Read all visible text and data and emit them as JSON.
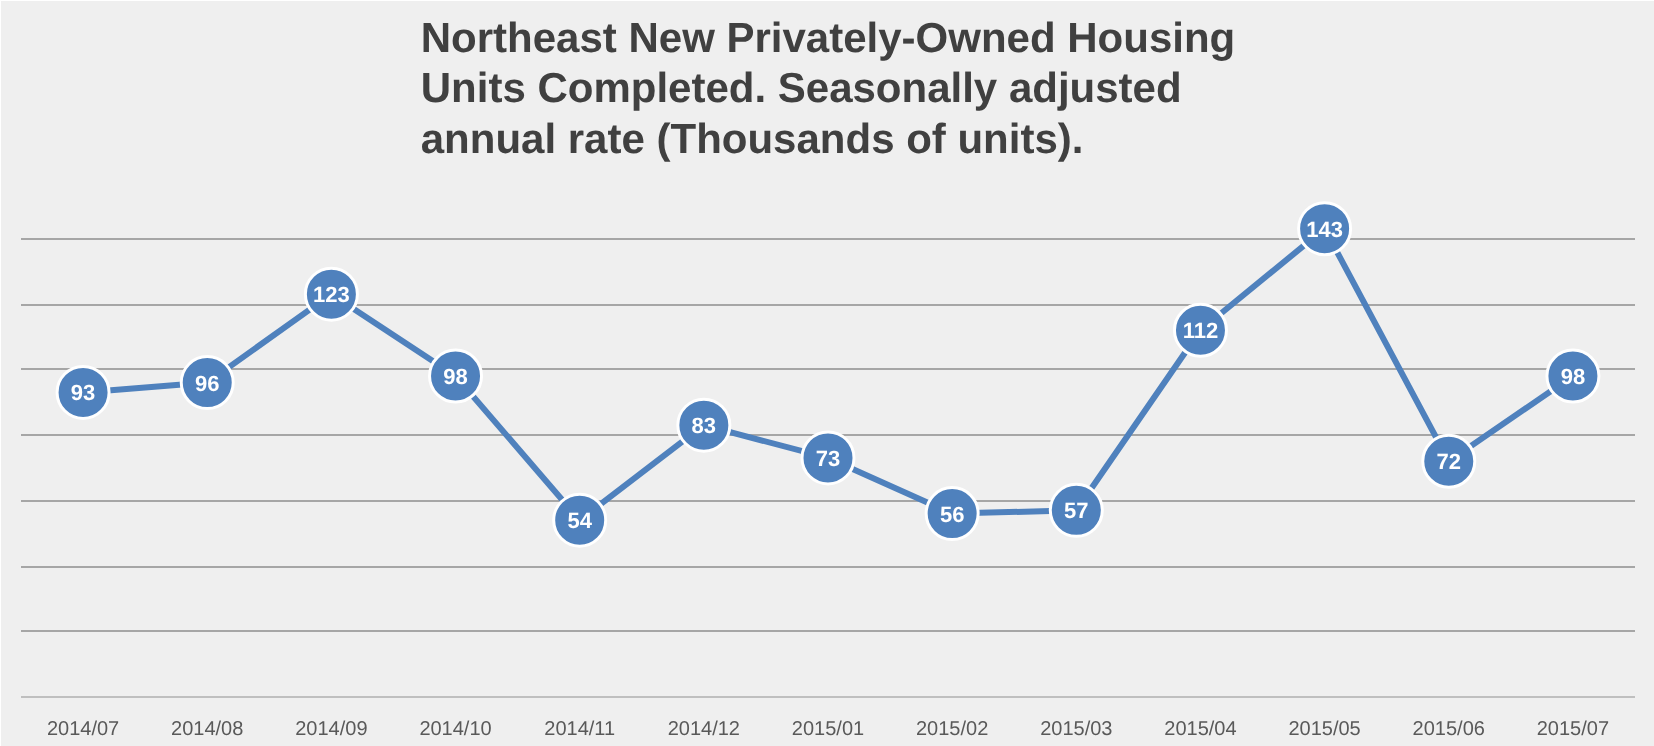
{
  "chart_data": {
    "type": "line",
    "title": "Northeast New Privately-Owned Housing Units Completed. Seasonally adjusted annual rate (Thousands of units).",
    "categories": [
      "2014/07",
      "2014/08",
      "2014/09",
      "2014/10",
      "2014/11",
      "2014/12",
      "2015/01",
      "2015/02",
      "2015/03",
      "2015/04",
      "2015/05",
      "2015/06",
      "2015/07"
    ],
    "series": [
      {
        "color": "#4f81bd",
        "values": [
          93,
          96,
          123,
          98,
          54,
          83,
          73,
          56,
          57,
          112,
          143,
          72,
          98
        ]
      }
    ],
    "ylim": [
      0,
      160
    ],
    "yticks": [
      {
        "value": 0,
        "label": null
      },
      {
        "value": 20,
        "label": null
      },
      {
        "value": 40,
        "label": null
      },
      {
        "value": 60,
        "label": null
      },
      {
        "value": 80,
        "label": null
      },
      {
        "value": 100,
        "label": null
      },
      {
        "value": 120,
        "label": null
      },
      {
        "value": 140,
        "label": null
      },
      {
        "value": 160,
        "label": null
      }
    ],
    "grid": "y",
    "tick_labels": "x",
    "marker": "circle",
    "line_style": "solid",
    "data_labels": true
  }
}
